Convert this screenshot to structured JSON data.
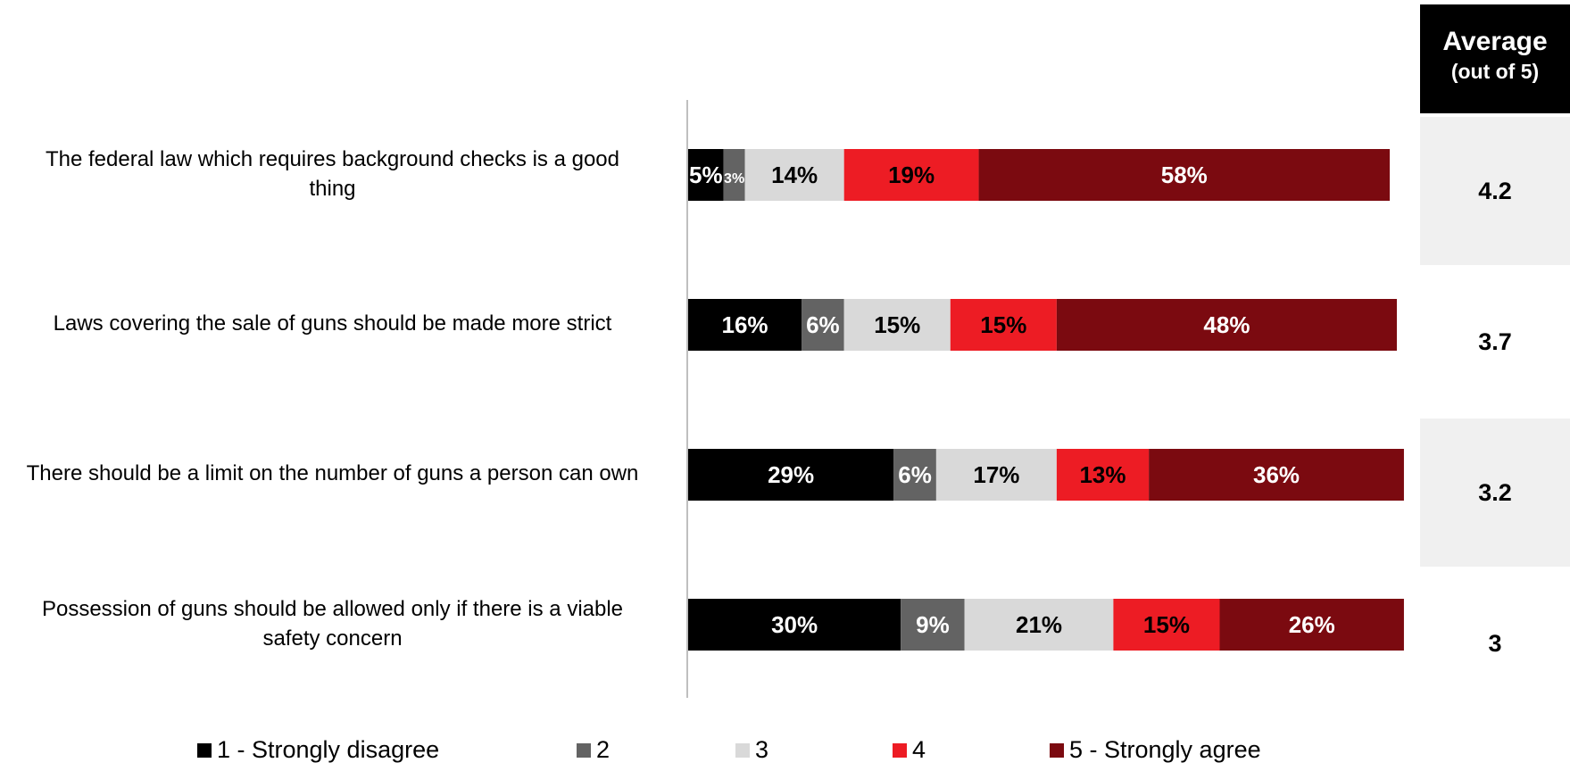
{
  "chart_data": {
    "type": "bar",
    "orientation": "horizontal",
    "stacked": true,
    "xlim": [
      0,
      100
    ],
    "grid": false,
    "legend_position": "bottom",
    "categories": [
      "The federal law which requires background checks is a good thing",
      "Laws covering the sale of guns should be made more strict",
      "There should be a limit on the number of guns a person can own",
      "Possession of guns should be allowed only if there is a viable safety concern"
    ],
    "series": [
      {
        "name": "1 - Strongly disagree",
        "color": "#000000",
        "label_color": "#ffffff",
        "values": [
          5,
          16,
          29,
          30
        ]
      },
      {
        "name": "2",
        "color": "#636363",
        "label_color": "#ffffff",
        "values": [
          3,
          6,
          6,
          9
        ]
      },
      {
        "name": "3",
        "color": "#d9d9d9",
        "label_color": "#000000",
        "values": [
          14,
          15,
          17,
          21
        ]
      },
      {
        "name": "4",
        "color": "#ed1c24",
        "label_color": "#000000",
        "values": [
          19,
          15,
          13,
          15
        ]
      },
      {
        "name": "5 - Strongly agree",
        "color": "#7b0a10",
        "label_color": "#ffffff",
        "values": [
          58,
          48,
          36,
          26
        ]
      }
    ],
    "value_labels": [
      [
        "5%",
        "3%",
        "14%",
        "19%",
        "58%"
      ],
      [
        "16%",
        "6%",
        "15%",
        "15%",
        "48%"
      ],
      [
        "29%",
        "6%",
        "17%",
        "13%",
        "36%"
      ],
      [
        "30%",
        "9%",
        "21%",
        "15%",
        "26%"
      ]
    ],
    "average_header": {
      "title": "Average",
      "subtitle": "(out of 5)"
    },
    "averages": [
      "4.2",
      "3.7",
      "3.2",
      "3"
    ]
  },
  "category_display": [
    [
      "The federal law which requires background checks is a good",
      "thing"
    ],
    [
      "Laws covering the sale of guns should be made more strict"
    ],
    [
      "There should be a limit on the number of guns a person can own"
    ],
    [
      "Possession of guns should be allowed only if there is a viable",
      "safety concern"
    ]
  ]
}
